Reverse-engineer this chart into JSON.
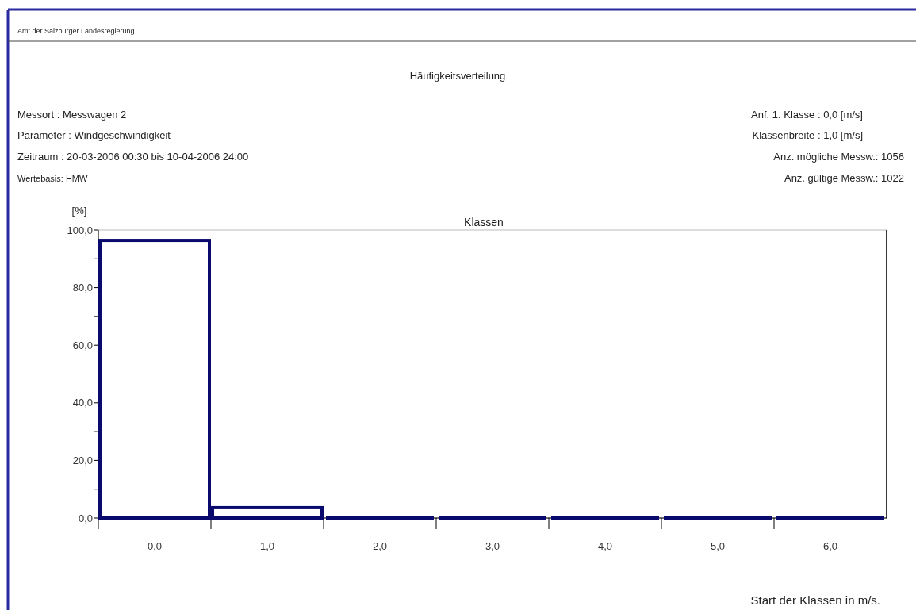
{
  "chart_data": {
    "type": "bar",
    "title": "Häufigkeitsverteilung",
    "subtitle": "Klassen",
    "ylabel": "[%]",
    "xlabel": "Start der Klassen in m/s.",
    "annotations": [
      "Amt der Salzburger Landesregierung",
      "Messort : Messwagen 2",
      "Parameter : Windgeschwindigkeit",
      "Zeitraum : 20-03-2006 00:30 bis 10-04-2006 24:00",
      "Wertebasis: HMW",
      "Anf. 1. Klasse : 0,0 [m/s]",
      "Klassenbreite : 1,0 [m/s]",
      "Anz. mögliche Messw.: 1056",
      "Anz. gültige Messw.: 1022"
    ],
    "categories": [
      "0,0",
      "1,0",
      "2,0",
      "3,0",
      "4,0",
      "5,0",
      "6,0"
    ],
    "values": [
      96.4,
      3.6,
      0,
      0,
      0,
      0,
      0
    ],
    "color": "#0a0a6e",
    "ylim": [
      0,
      100
    ],
    "yticks": [
      {
        "value": 0,
        "label": "0,0"
      },
      {
        "value": 10,
        "label": null
      },
      {
        "value": 20,
        "label": "20,0"
      },
      {
        "value": 30,
        "label": null
      },
      {
        "value": 40,
        "label": "40,0"
      },
      {
        "value": 50,
        "label": null
      },
      {
        "value": 60,
        "label": "60,0"
      },
      {
        "value": 70,
        "label": null
      },
      {
        "value": 80,
        "label": "80,0"
      },
      {
        "value": 90,
        "label": null
      },
      {
        "value": 100,
        "label": "100,0"
      }
    ],
    "grid": false
  }
}
